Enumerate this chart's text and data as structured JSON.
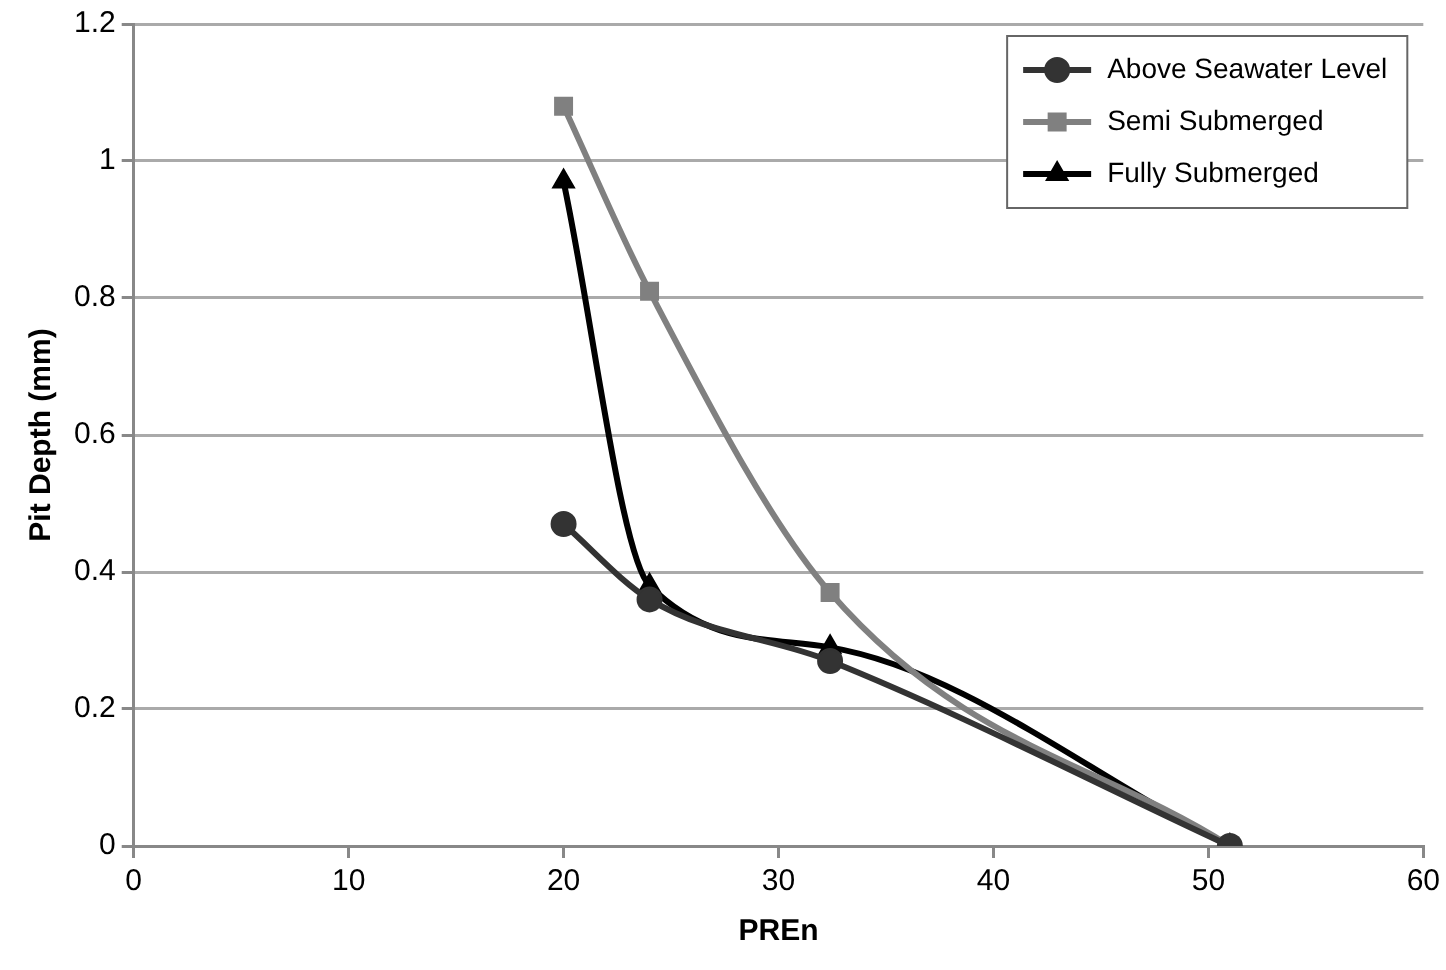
{
  "chart_data": {
    "type": "line",
    "xlabel": "PREn",
    "ylabel": "Pit Depth (mm)",
    "xlim": [
      0,
      60
    ],
    "xticks": [
      0,
      10,
      20,
      30,
      40,
      50,
      60
    ],
    "ylim": [
      0,
      1.2
    ],
    "yticks": [
      0,
      0.2,
      0.4,
      0.6,
      0.8,
      1,
      1.2
    ],
    "grid": "y",
    "legend": "top right",
    "line_style": "solid",
    "series": [
      {
        "name": "Above Seawater Level",
        "color": "#333333",
        "marker": "circle",
        "x": [
          20,
          24,
          32.4,
          51
        ],
        "values": [
          0.47,
          0.36,
          0.27,
          0
        ]
      },
      {
        "name": "Semi Submerged",
        "color": "#808080",
        "marker": "square",
        "x": [
          20,
          24,
          32.4,
          51
        ],
        "values": [
          1.08,
          0.81,
          0.37,
          0
        ]
      },
      {
        "name": "Fully Submerged",
        "color": "#000000",
        "marker": "triangle",
        "x": [
          20,
          24,
          32.4,
          51
        ],
        "values": [
          0.97,
          0.38,
          0.29,
          0
        ]
      }
    ]
  }
}
